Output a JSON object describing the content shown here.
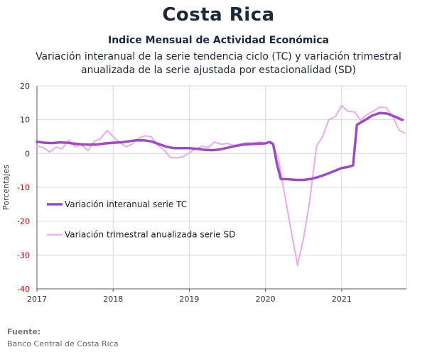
{
  "header": {
    "title": "Costa Rica",
    "subtitle1": "Indice Mensual de  Actividad Económica",
    "subtitle2": "Variación interanual de la serie tendencia ciclo (TC) y variación trimestral anualizada de la serie ajustada por estacionalidad (SD)"
  },
  "footer": {
    "source_title": "Fuente:",
    "source_text": "Banco Central de Costa Rica"
  },
  "colors": {
    "tc": "#9b4dbf",
    "sd": "#e9aaee",
    "grid": "#d9d9d9",
    "axis": "#555555",
    "negative_tick": "#c00000"
  },
  "chart_data": {
    "type": "line",
    "title": "",
    "xlabel": "",
    "ylabel": "Porcentajes",
    "ylim": [
      -40,
      20
    ],
    "yticks": [
      20,
      10,
      0,
      -10,
      -20,
      -30,
      -40
    ],
    "xlim": [
      2017,
      2021.85
    ],
    "xticks": [
      "2017",
      "2018",
      "2019",
      "2020",
      "2021"
    ],
    "grid": true,
    "legend_position": "left-inside",
    "series": [
      {
        "name": "Variación interanual serie TC",
        "x": [
          2017.0,
          2017.1,
          2017.2,
          2017.3,
          2017.4,
          2017.5,
          2017.6,
          2017.7,
          2017.8,
          2017.9,
          2018.0,
          2018.1,
          2018.2,
          2018.3,
          2018.4,
          2018.5,
          2018.6,
          2018.7,
          2018.8,
          2018.9,
          2019.0,
          2019.1,
          2019.2,
          2019.3,
          2019.4,
          2019.5,
          2019.6,
          2019.7,
          2019.8,
          2019.9,
          2020.0,
          2020.05,
          2020.1,
          2020.15,
          2020.2,
          2020.3,
          2020.4,
          2020.5,
          2020.6,
          2020.7,
          2020.8,
          2020.9,
          2021.0,
          2021.1,
          2021.15,
          2021.2,
          2021.3,
          2021.4,
          2021.5,
          2021.6,
          2021.7,
          2021.8
        ],
        "y": [
          3.5,
          3.2,
          3.1,
          3.3,
          3.2,
          2.9,
          2.7,
          2.6,
          2.7,
          3.0,
          3.2,
          3.3,
          3.6,
          3.9,
          3.9,
          3.6,
          2.8,
          2.0,
          1.6,
          1.6,
          1.6,
          1.4,
          1.1,
          1.0,
          1.2,
          1.7,
          2.2,
          2.6,
          2.8,
          2.9,
          3.0,
          3.4,
          2.8,
          -3.0,
          -7.5,
          -7.6,
          -7.8,
          -7.8,
          -7.5,
          -6.9,
          -6.1,
          -5.2,
          -4.3,
          -3.9,
          -3.5,
          8.5,
          9.8,
          11.2,
          12.0,
          11.8,
          10.9,
          9.9
        ]
      },
      {
        "name": "Variación trimestral anualizada serie SD",
        "x": [
          2017.0,
          2017.08,
          2017.17,
          2017.25,
          2017.33,
          2017.42,
          2017.5,
          2017.58,
          2017.67,
          2017.75,
          2017.83,
          2017.92,
          2018.0,
          2018.08,
          2018.17,
          2018.25,
          2018.33,
          2018.42,
          2018.5,
          2018.58,
          2018.67,
          2018.75,
          2018.83,
          2018.92,
          2019.0,
          2019.08,
          2019.17,
          2019.25,
          2019.33,
          2019.42,
          2019.5,
          2019.58,
          2019.67,
          2019.75,
          2019.83,
          2019.92,
          2020.0,
          2020.08,
          2020.17,
          2020.25,
          2020.33,
          2020.42,
          2020.5,
          2020.58,
          2020.67,
          2020.75,
          2020.83,
          2020.92,
          2021.0,
          2021.08,
          2021.17,
          2021.25,
          2021.33,
          2021.42,
          2021.5,
          2021.58,
          2021.67,
          2021.75,
          2021.83
        ],
        "y": [
          2.2,
          1.8,
          0.4,
          1.9,
          1.4,
          4.0,
          2.0,
          2.7,
          0.9,
          3.6,
          4.3,
          6.8,
          5.0,
          3.4,
          2.0,
          2.8,
          4.5,
          5.2,
          5.0,
          2.6,
          1.0,
          -1.1,
          -1.3,
          -0.9,
          0.2,
          1.3,
          2.2,
          1.8,
          3.4,
          2.7,
          3.0,
          2.4,
          2.8,
          3.2,
          3.1,
          3.4,
          3.1,
          3.5,
          -1.5,
          -12.0,
          -22.0,
          -33.0,
          -25.0,
          -14.0,
          2.3,
          5.0,
          10.0,
          11.0,
          14.2,
          12.5,
          12.3,
          9.8,
          11.5,
          12.6,
          13.7,
          13.6,
          11.0,
          7.0,
          6.0
        ]
      }
    ]
  }
}
